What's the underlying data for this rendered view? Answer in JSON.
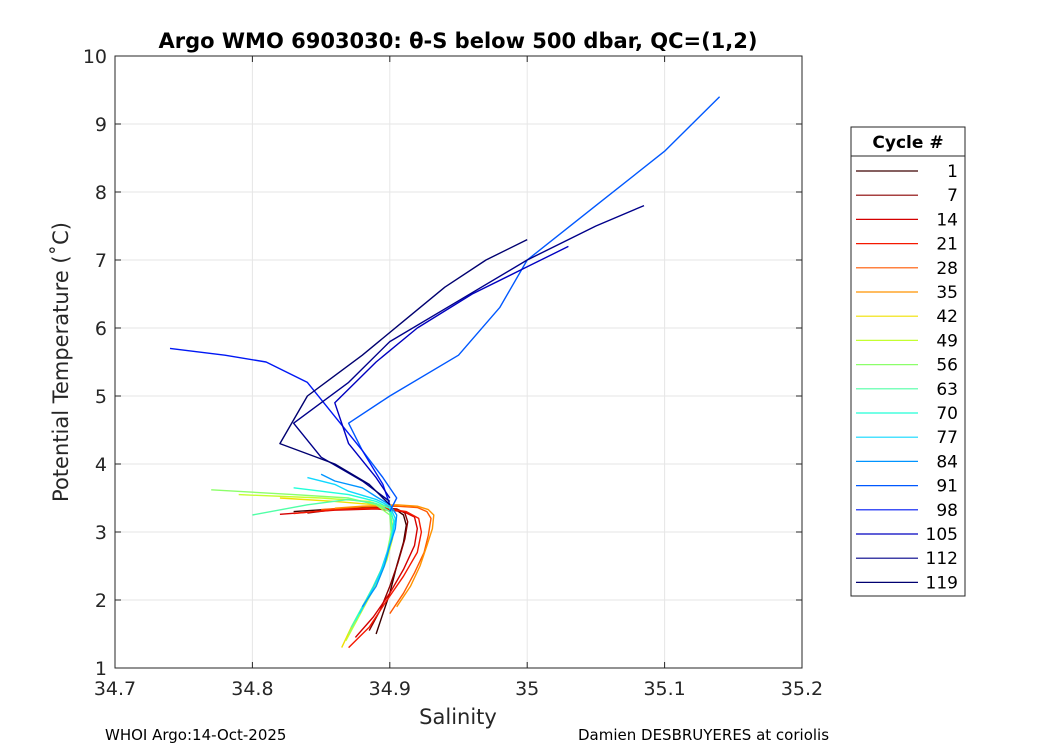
{
  "chart_data": {
    "type": "line",
    "title": "Argo WMO 6903030: θ-S below 500 dbar,  QC=(1,2)",
    "xlabel": "Salinity",
    "ylabel": "Potential Temperature (˚C)",
    "xlim": [
      34.7,
      35.2
    ],
    "ylim": [
      1,
      10
    ],
    "xticks": [
      "34.7",
      "34.8",
      "34.9",
      "35",
      "35.1",
      "35.2"
    ],
    "yticks": [
      "1",
      "2",
      "3",
      "4",
      "5",
      "6",
      "7",
      "8",
      "9",
      "10"
    ],
    "grid": true,
    "legend": {
      "title": "Cycle #",
      "placement": "right",
      "entries": [
        "1",
        "7",
        "14",
        "21",
        "28",
        "35",
        "42",
        "49",
        "56",
        "63",
        "70",
        "77",
        "84",
        "91",
        "98",
        "105",
        "112",
        "119"
      ],
      "colors": [
        "#3d0000",
        "#8a0000",
        "#d40000",
        "#f51800",
        "#ff5800",
        "#ff9400",
        "#f0e000",
        "#c4ff30",
        "#8cff6a",
        "#50ffa6",
        "#20ffd8",
        "#10d8ff",
        "#0094ff",
        "#0058ff",
        "#0018f4",
        "#0000c0",
        "#00008a",
        "#000070"
      ]
    },
    "series": [
      {
        "name": "1",
        "x": [
          34.89,
          34.895,
          34.9,
          34.905,
          34.91,
          34.912,
          34.91,
          34.905,
          34.89,
          34.86,
          34.83
        ],
        "y": [
          1.5,
          1.8,
          2.1,
          2.5,
          2.85,
          3.1,
          3.25,
          3.32,
          3.35,
          3.34,
          3.3
        ]
      },
      {
        "name": "7",
        "x": [
          34.885,
          34.893,
          34.9,
          34.906,
          34.911,
          34.913,
          34.911,
          34.905,
          34.89,
          34.86,
          34.84
        ],
        "y": [
          1.55,
          1.85,
          2.2,
          2.55,
          2.9,
          3.15,
          3.28,
          3.34,
          3.36,
          3.33,
          3.28
        ]
      },
      {
        "name": "14",
        "x": [
          34.875,
          34.888,
          34.9,
          34.91,
          34.918,
          34.92,
          34.918,
          34.91,
          34.89,
          34.86,
          34.82
        ],
        "y": [
          1.45,
          1.75,
          2.1,
          2.45,
          2.8,
          3.05,
          3.22,
          3.3,
          3.34,
          3.32,
          3.26
        ]
      },
      {
        "name": "21",
        "x": [
          34.87,
          34.885,
          34.898,
          34.91,
          34.92,
          34.923,
          34.921,
          34.912,
          34.895,
          34.86,
          34.83
        ],
        "y": [
          1.3,
          1.6,
          2.0,
          2.35,
          2.7,
          3.0,
          3.2,
          3.3,
          3.35,
          3.33,
          3.27
        ]
      },
      {
        "name": "28",
        "x": [
          34.9,
          34.91,
          34.918,
          34.925,
          34.928,
          34.93,
          34.927,
          34.92,
          34.905,
          34.88,
          34.85
        ],
        "y": [
          1.8,
          2.1,
          2.4,
          2.7,
          2.95,
          3.2,
          3.3,
          3.36,
          3.38,
          3.37,
          3.33
        ]
      },
      {
        "name": "35",
        "x": [
          34.905,
          34.915,
          34.922,
          34.927,
          34.931,
          34.932,
          34.928,
          34.92,
          34.905,
          34.88,
          34.86
        ],
        "y": [
          1.9,
          2.2,
          2.5,
          2.8,
          3.05,
          3.25,
          3.33,
          3.38,
          3.4,
          3.38,
          3.35
        ]
      },
      {
        "name": "42",
        "x": [
          34.865,
          34.872,
          34.88,
          34.888,
          34.895,
          34.9,
          34.902,
          34.9,
          34.89,
          34.86,
          34.82
        ],
        "y": [
          1.3,
          1.6,
          1.9,
          2.2,
          2.5,
          2.8,
          3.1,
          3.3,
          3.4,
          3.45,
          3.5
        ]
      },
      {
        "name": "49",
        "x": [
          34.868,
          34.876,
          34.884,
          34.892,
          34.898,
          34.902,
          34.903,
          34.9,
          34.885,
          34.85,
          34.79
        ],
        "y": [
          1.4,
          1.7,
          2.0,
          2.3,
          2.6,
          2.9,
          3.15,
          3.35,
          3.45,
          3.5,
          3.55
        ]
      },
      {
        "name": "56",
        "x": [
          34.87,
          34.878,
          34.886,
          34.893,
          34.898,
          34.901,
          34.9,
          34.89,
          34.87,
          34.83,
          34.77
        ],
        "y": [
          1.5,
          1.8,
          2.1,
          2.4,
          2.7,
          3.0,
          3.25,
          3.4,
          3.5,
          3.55,
          3.62
        ]
      },
      {
        "name": "63",
        "x": [
          34.872,
          34.88,
          34.888,
          34.895,
          34.9,
          34.902,
          34.9,
          34.89,
          34.87,
          34.84,
          34.8
        ],
        "y": [
          1.6,
          1.9,
          2.2,
          2.5,
          2.8,
          3.05,
          3.3,
          3.42,
          3.48,
          3.4,
          3.25
        ]
      },
      {
        "name": "70",
        "x": [
          34.875,
          34.883,
          34.891,
          34.897,
          34.901,
          34.903,
          34.9,
          34.89,
          34.87,
          34.85,
          34.83
        ],
        "y": [
          1.7,
          2.0,
          2.3,
          2.6,
          2.9,
          3.15,
          3.35,
          3.45,
          3.55,
          3.6,
          3.65
        ]
      },
      {
        "name": "77",
        "x": [
          34.878,
          34.886,
          34.893,
          34.898,
          34.902,
          34.904,
          34.9,
          34.89,
          34.87,
          34.86,
          34.84
        ],
        "y": [
          1.8,
          2.1,
          2.4,
          2.7,
          2.95,
          3.2,
          3.38,
          3.48,
          3.6,
          3.7,
          3.8
        ]
      },
      {
        "name": "84",
        "x": [
          34.88,
          34.89,
          34.896,
          34.9,
          34.904,
          34.905,
          34.9,
          34.89,
          34.88,
          34.86,
          34.85
        ],
        "y": [
          1.9,
          2.2,
          2.5,
          2.8,
          3.05,
          3.25,
          3.4,
          3.52,
          3.65,
          3.75,
          3.85
        ]
      },
      {
        "name": "91",
        "x": [
          34.9,
          34.905,
          34.895,
          34.88,
          34.87,
          34.9,
          34.95,
          34.98,
          35.0,
          35.05,
          35.1,
          35.14
        ],
        "y": [
          3.3,
          3.5,
          3.8,
          4.2,
          4.6,
          5.0,
          5.6,
          6.3,
          7.0,
          7.8,
          8.6,
          9.4
        ]
      },
      {
        "name": "98",
        "x": [
          34.9,
          34.895,
          34.88,
          34.86,
          34.84,
          34.81,
          34.78,
          34.76,
          34.74
        ],
        "y": [
          3.4,
          3.7,
          4.2,
          4.7,
          5.2,
          5.5,
          5.6,
          5.65,
          5.7
        ]
      },
      {
        "name": "105",
        "x": [
          34.9,
          34.89,
          34.87,
          34.86,
          34.89,
          34.92,
          34.96,
          35.0,
          35.03
        ],
        "y": [
          3.5,
          3.8,
          4.3,
          4.9,
          5.5,
          6.0,
          6.5,
          6.9,
          7.2
        ]
      },
      {
        "name": "112",
        "x": [
          34.9,
          34.88,
          34.85,
          34.83,
          34.87,
          34.9,
          34.95,
          35.0,
          35.05,
          35.085
        ],
        "y": [
          3.45,
          3.75,
          4.1,
          4.6,
          5.2,
          5.8,
          6.4,
          7.0,
          7.5,
          7.8
        ]
      },
      {
        "name": "119",
        "x": [
          34.9,
          34.885,
          34.86,
          34.82,
          34.84,
          34.88,
          34.91,
          34.94,
          34.97,
          35.0
        ],
        "y": [
          3.4,
          3.7,
          4.0,
          4.3,
          5.0,
          5.6,
          6.1,
          6.6,
          7.0,
          7.3
        ]
      }
    ]
  },
  "footer": {
    "left": "WHOI Argo:14-Oct-2025",
    "right": "Damien DESBRUYERES at coriolis"
  }
}
